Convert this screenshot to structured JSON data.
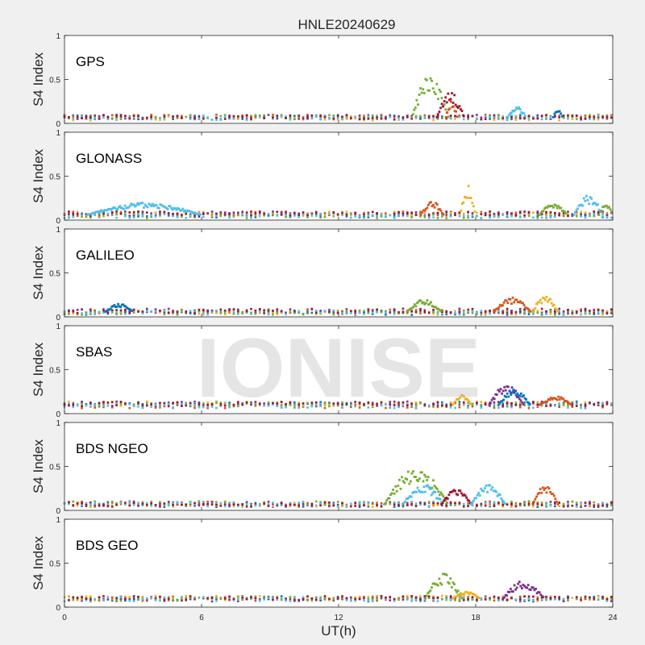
{
  "figure": {
    "title": "HNLE20240629",
    "watermark": "IONISE",
    "xlabel": "UT(h)",
    "ylabel": "S4 Index",
    "x_ticks": [
      0,
      6,
      12,
      18,
      24
    ],
    "y_ticks": [
      0,
      0.5,
      1
    ],
    "background": "#f0f0f0",
    "axes_background": "#ffffff",
    "series_colors": [
      "#0072BD",
      "#D95319",
      "#EDB120",
      "#7E2F8E",
      "#77AC30",
      "#4DBEEE",
      "#A2142F"
    ]
  },
  "chart_data": [
    {
      "type": "scatter",
      "label": "GPS",
      "xlim": [
        0,
        24
      ],
      "ylim": [
        0,
        1
      ],
      "grid": false,
      "baseline": 0.07,
      "activity": [
        {
          "x": [
            15.2,
            16.8
          ],
          "peak": 0.55,
          "color": "#77AC30"
        },
        {
          "x": [
            16.3,
            17.5
          ],
          "peak": 0.35,
          "color": "#A2142F"
        },
        {
          "x": [
            16.7,
            17.2
          ],
          "peak": 0.25,
          "color": "#D95319"
        },
        {
          "x": [
            19.4,
            20.2
          ],
          "peak": 0.2,
          "color": "#4DBEEE"
        },
        {
          "x": [
            21.4,
            21.8
          ],
          "peak": 0.18,
          "color": "#0072BD"
        }
      ]
    },
    {
      "type": "scatter",
      "label": "GLONASS",
      "xlim": [
        0,
        24
      ],
      "ylim": [
        0,
        1
      ],
      "grid": false,
      "baseline": 0.06,
      "activity": [
        {
          "x": [
            1.0,
            6.0
          ],
          "peak": 0.2,
          "color": "#4DBEEE"
        },
        {
          "x": [
            15.6,
            16.6
          ],
          "peak": 0.22,
          "color": "#D95319"
        },
        {
          "x": [
            17.3,
            18.0
          ],
          "peak": 0.4,
          "color": "#EDB120"
        },
        {
          "x": [
            20.8,
            22.0
          ],
          "peak": 0.2,
          "color": "#77AC30"
        },
        {
          "x": [
            22.3,
            23.6
          ],
          "peak": 0.28,
          "color": "#4DBEEE"
        },
        {
          "x": [
            23.4,
            24.0
          ],
          "peak": 0.2,
          "color": "#77AC30"
        }
      ]
    },
    {
      "type": "scatter",
      "label": "GALILEO",
      "xlim": [
        0,
        24
      ],
      "ylim": [
        0,
        1
      ],
      "grid": false,
      "baseline": 0.06,
      "activity": [
        {
          "x": [
            1.8,
            3.0
          ],
          "peak": 0.15,
          "color": "#0072BD"
        },
        {
          "x": [
            15.0,
            16.5
          ],
          "peak": 0.2,
          "color": "#77AC30"
        },
        {
          "x": [
            18.8,
            20.4
          ],
          "peak": 0.22,
          "color": "#D95319"
        },
        {
          "x": [
            20.5,
            21.6
          ],
          "peak": 0.25,
          "color": "#EDB120"
        }
      ]
    },
    {
      "type": "scatter",
      "label": "SBAS",
      "xlim": [
        0,
        24
      ],
      "ylim": [
        0,
        1
      ],
      "grid": false,
      "baseline": 0.1,
      "activity": [
        {
          "x": [
            17.0,
            17.8
          ],
          "peak": 0.22,
          "color": "#EDB120"
        },
        {
          "x": [
            18.6,
            20.1
          ],
          "peak": 0.35,
          "color": "#7E2F8E"
        },
        {
          "x": [
            19.0,
            20.4
          ],
          "peak": 0.28,
          "color": "#0072BD"
        },
        {
          "x": [
            20.8,
            22.2
          ],
          "peak": 0.2,
          "color": "#D95319"
        }
      ]
    },
    {
      "type": "scatter",
      "label": "BDS NGEO",
      "xlim": [
        0,
        24
      ],
      "ylim": [
        0,
        1
      ],
      "grid": false,
      "baseline": 0.07,
      "activity": [
        {
          "x": [
            14.0,
            16.8
          ],
          "peak": 0.48,
          "color": "#77AC30"
        },
        {
          "x": [
            14.8,
            16.6
          ],
          "peak": 0.3,
          "color": "#4DBEEE"
        },
        {
          "x": [
            16.5,
            17.8
          ],
          "peak": 0.25,
          "color": "#A2142F"
        },
        {
          "x": [
            17.8,
            19.3
          ],
          "peak": 0.3,
          "color": "#4DBEEE"
        },
        {
          "x": [
            20.5,
            21.6
          ],
          "peak": 0.3,
          "color": "#D95319"
        }
      ]
    },
    {
      "type": "scatter",
      "label": "BDS GEO",
      "xlim": [
        0,
        24
      ],
      "ylim": [
        0,
        1
      ],
      "grid": false,
      "baseline": 0.1,
      "activity": [
        {
          "x": [
            15.8,
            17.4
          ],
          "peak": 0.38,
          "color": "#77AC30"
        },
        {
          "x": [
            19.2,
            21.0
          ],
          "peak": 0.3,
          "color": "#7E2F8E"
        },
        {
          "x": [
            17.0,
            18.2
          ],
          "peak": 0.18,
          "color": "#EDB120"
        }
      ]
    }
  ]
}
